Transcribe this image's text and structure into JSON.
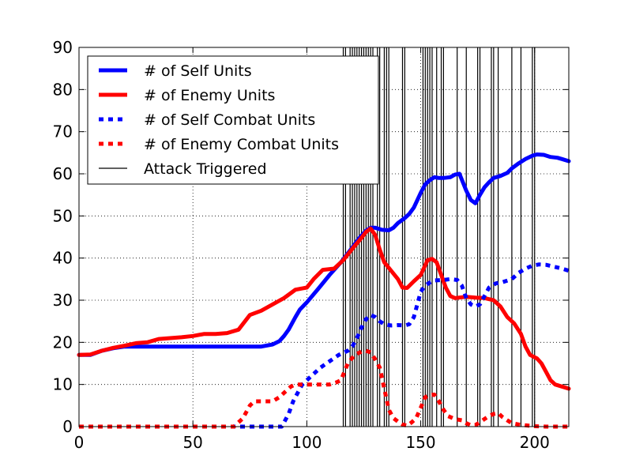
{
  "chart_data": {
    "type": "line",
    "title": "",
    "xlabel": "",
    "ylabel": "",
    "xlim": [
      0,
      215
    ],
    "ylim": [
      0,
      90
    ],
    "xticks": [
      0,
      50,
      100,
      150,
      200
    ],
    "yticks": [
      0,
      10,
      20,
      30,
      40,
      50,
      60,
      70,
      80,
      90
    ],
    "grid": true,
    "legend_position": "top-left",
    "series": [
      {
        "name": "# of Self Units",
        "color": "#0000ff",
        "style": "solid",
        "points": [
          [
            0,
            17
          ],
          [
            5,
            17
          ],
          [
            10,
            18
          ],
          [
            15,
            18.6
          ],
          [
            20,
            19
          ],
          [
            25,
            19
          ],
          [
            40,
            19
          ],
          [
            60,
            19
          ],
          [
            70,
            19
          ],
          [
            80,
            19
          ],
          [
            85,
            19.5
          ],
          [
            88,
            20.3
          ],
          [
            90,
            21.5
          ],
          [
            92,
            23
          ],
          [
            95,
            26
          ],
          [
            97,
            27.8
          ],
          [
            100,
            29.5
          ],
          [
            105,
            32.7
          ],
          [
            110,
            36
          ],
          [
            115,
            39
          ],
          [
            120,
            42.5
          ],
          [
            123,
            44.7
          ],
          [
            126,
            46.5
          ],
          [
            128,
            47.2
          ],
          [
            130,
            47.2
          ],
          [
            133,
            46.7
          ],
          [
            136,
            46.6
          ],
          [
            138,
            47.2
          ],
          [
            140,
            48.3
          ],
          [
            143,
            49.5
          ],
          [
            145,
            50.5
          ],
          [
            147,
            52
          ],
          [
            150,
            55.5
          ],
          [
            152,
            57.5
          ],
          [
            154,
            58.5
          ],
          [
            156,
            59.2
          ],
          [
            158,
            59
          ],
          [
            160,
            59
          ],
          [
            163,
            59.2
          ],
          [
            165,
            59.8
          ],
          [
            167,
            60
          ],
          [
            170,
            56
          ],
          [
            172,
            53.8
          ],
          [
            174,
            53
          ],
          [
            176,
            55
          ],
          [
            178,
            56.8
          ],
          [
            180,
            58
          ],
          [
            182,
            59
          ],
          [
            185,
            59.5
          ],
          [
            188,
            60.2
          ],
          [
            190,
            61.3
          ],
          [
            193,
            62.5
          ],
          [
            196,
            63.5
          ],
          [
            199,
            64.3
          ],
          [
            201,
            64.6
          ],
          [
            204,
            64.5
          ],
          [
            207,
            64
          ],
          [
            210,
            63.8
          ],
          [
            212,
            63.5
          ],
          [
            215,
            63
          ]
        ]
      },
      {
        "name": "# of Enemy Units",
        "color": "#ff0000",
        "style": "solid",
        "points": [
          [
            0,
            17
          ],
          [
            5,
            17.1
          ],
          [
            10,
            18
          ],
          [
            15,
            18.7
          ],
          [
            20,
            19.2
          ],
          [
            25,
            19.8
          ],
          [
            30,
            20
          ],
          [
            35,
            20.8
          ],
          [
            40,
            21
          ],
          [
            45,
            21.2
          ],
          [
            50,
            21.5
          ],
          [
            55,
            22
          ],
          [
            60,
            22
          ],
          [
            65,
            22.2
          ],
          [
            70,
            23
          ],
          [
            75,
            26.5
          ],
          [
            80,
            27.5
          ],
          [
            85,
            29
          ],
          [
            90,
            30.5
          ],
          [
            95,
            32.5
          ],
          [
            100,
            33
          ],
          [
            103,
            35
          ],
          [
            107,
            37.2
          ],
          [
            112,
            37.5
          ],
          [
            116,
            39.5
          ],
          [
            120,
            42.2
          ],
          [
            124,
            44.8
          ],
          [
            126,
            46.2
          ],
          [
            128,
            47
          ],
          [
            130,
            45.5
          ],
          [
            132,
            42
          ],
          [
            134,
            39
          ],
          [
            137,
            37
          ],
          [
            140,
            35
          ],
          [
            142,
            33
          ],
          [
            144,
            32.9
          ],
          [
            147,
            34.5
          ],
          [
            150,
            36
          ],
          [
            153,
            39.5
          ],
          [
            155,
            39.8
          ],
          [
            157,
            39
          ],
          [
            159,
            36
          ],
          [
            161,
            33
          ],
          [
            163,
            31
          ],
          [
            165,
            30.5
          ],
          [
            170,
            30.8
          ],
          [
            174,
            30.6
          ],
          [
            178,
            30.5
          ],
          [
            182,
            30
          ],
          [
            185,
            28.5
          ],
          [
            188,
            26
          ],
          [
            191,
            24.5
          ],
          [
            194,
            22
          ],
          [
            196,
            19
          ],
          [
            198,
            17
          ],
          [
            201,
            16.2
          ],
          [
            203,
            15
          ],
          [
            205,
            13
          ],
          [
            207,
            11
          ],
          [
            209,
            10
          ],
          [
            212,
            9.5
          ],
          [
            215,
            9
          ]
        ]
      },
      {
        "name": "# of Self Combat Units",
        "color": "#0000ff",
        "style": "dashed",
        "points": [
          [
            0,
            0
          ],
          [
            70,
            0
          ],
          [
            85,
            0
          ],
          [
            89,
            0
          ],
          [
            92,
            3
          ],
          [
            94,
            6
          ],
          [
            96,
            8
          ],
          [
            98,
            10
          ],
          [
            100,
            11
          ],
          [
            103,
            12.5
          ],
          [
            106,
            14
          ],
          [
            110,
            15.5
          ],
          [
            114,
            17
          ],
          [
            118,
            18
          ],
          [
            120,
            19
          ],
          [
            122,
            21
          ],
          [
            124,
            23.5
          ],
          [
            126,
            25.5
          ],
          [
            128,
            26.5
          ],
          [
            130,
            26
          ],
          [
            132,
            25
          ],
          [
            134,
            24.3
          ],
          [
            137,
            24
          ],
          [
            140,
            24.1
          ],
          [
            143,
            24
          ],
          [
            145,
            24.3
          ],
          [
            147,
            26
          ],
          [
            150,
            32
          ],
          [
            152,
            33.5
          ],
          [
            154,
            34.2
          ],
          [
            156,
            34.7
          ],
          [
            160,
            34.8
          ],
          [
            163,
            35
          ],
          [
            166,
            34.8
          ],
          [
            168,
            33.5
          ],
          [
            170,
            30.5
          ],
          [
            172,
            29
          ],
          [
            174,
            28.5
          ],
          [
            176,
            29
          ],
          [
            178,
            31
          ],
          [
            180,
            33
          ],
          [
            183,
            34
          ],
          [
            186,
            34.3
          ],
          [
            190,
            35
          ],
          [
            193,
            36.5
          ],
          [
            196,
            37.5
          ],
          [
            199,
            38.2
          ],
          [
            202,
            38.5
          ],
          [
            205,
            38.4
          ],
          [
            208,
            38
          ],
          [
            212,
            37.5
          ],
          [
            215,
            37
          ]
        ]
      },
      {
        "name": "# of Enemy Combat Units",
        "color": "#ff0000",
        "style": "dashed",
        "points": [
          [
            0,
            0
          ],
          [
            68,
            0
          ],
          [
            72,
            2
          ],
          [
            75,
            5
          ],
          [
            77,
            6
          ],
          [
            85,
            6
          ],
          [
            88,
            7
          ],
          [
            90,
            8
          ],
          [
            93,
            9.5
          ],
          [
            95,
            10
          ],
          [
            100,
            10
          ],
          [
            110,
            10
          ],
          [
            113,
            10.5
          ],
          [
            115,
            11
          ],
          [
            118,
            15
          ],
          [
            121,
            17
          ],
          [
            124,
            17.8
          ],
          [
            126,
            18
          ],
          [
            128,
            17.6
          ],
          [
            130,
            16
          ],
          [
            132,
            14
          ],
          [
            134,
            9
          ],
          [
            136,
            4
          ],
          [
            138,
            2
          ],
          [
            140,
            1.2
          ],
          [
            142,
            0.5
          ],
          [
            144,
            0.2
          ],
          [
            146,
            1
          ],
          [
            148,
            2
          ],
          [
            150,
            4.5
          ],
          [
            152,
            7
          ],
          [
            154,
            7.5
          ],
          [
            156,
            7.6
          ],
          [
            158,
            6
          ],
          [
            160,
            4
          ],
          [
            162,
            2.5
          ],
          [
            165,
            1.8
          ],
          [
            168,
            1.5
          ],
          [
            170,
            0.8
          ],
          [
            172,
            0.3
          ],
          [
            174,
            0.4
          ],
          [
            176,
            1
          ],
          [
            178,
            1.8
          ],
          [
            180,
            2.5
          ],
          [
            182,
            3
          ],
          [
            184,
            3.2
          ],
          [
            186,
            2.2
          ],
          [
            188,
            1.5
          ],
          [
            190,
            0.8
          ],
          [
            193,
            0.5
          ],
          [
            196,
            0.3
          ],
          [
            200,
            0.1
          ],
          [
            205,
            0
          ],
          [
            215,
            0
          ]
        ]
      },
      {
        "name": "Attack Triggered",
        "color": "#000000",
        "style": "vertical-lines",
        "x_values": [
          116,
          117,
          119,
          120,
          121,
          122,
          123,
          124,
          125,
          126,
          127,
          128,
          129,
          131,
          132,
          134,
          135,
          136,
          142,
          143,
          151,
          152,
          153,
          154,
          155,
          157,
          159,
          160,
          166,
          170,
          175,
          176,
          181,
          182,
          184,
          190,
          194,
          199,
          200
        ]
      }
    ]
  }
}
